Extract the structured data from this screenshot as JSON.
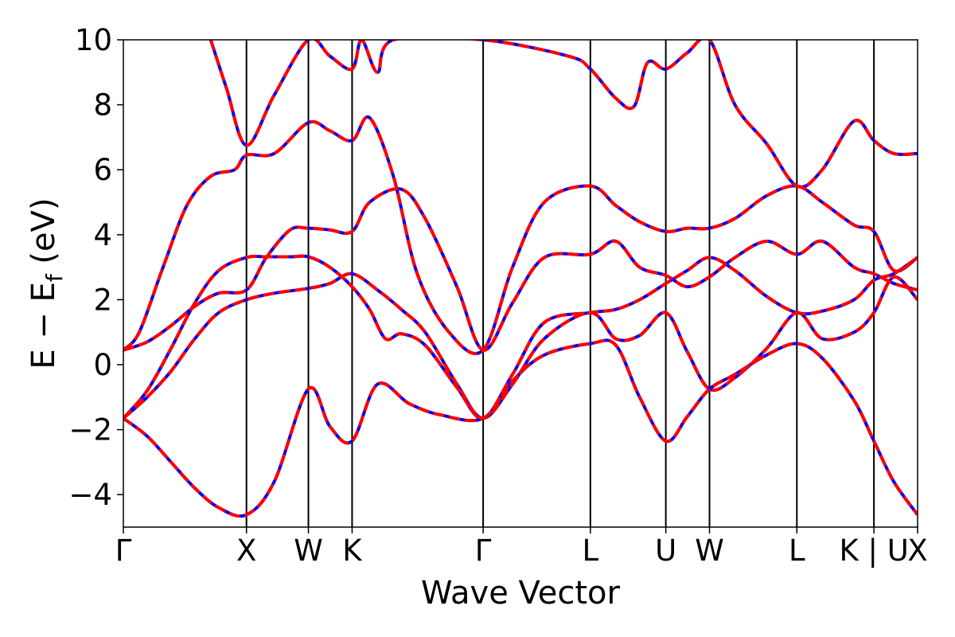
{
  "chart_data": {
    "type": "line",
    "xlabel": "Wave Vector",
    "ylabel_main": "E − E",
    "ylabel_sub": "f",
    "ylabel_unit": " (eV)",
    "ylim": [
      -5,
      10
    ],
    "xlim": [
      0,
      1
    ],
    "y_ticks": [
      -4,
      -2,
      0,
      2,
      4,
      6,
      8,
      10
    ],
    "y_tick_labels": [
      "−4",
      "−2",
      "0",
      "2",
      "4",
      "6",
      "8",
      "10"
    ],
    "kpoints": [
      {
        "label": "Γ",
        "x": 0.0
      },
      {
        "label": "X",
        "x": 0.155
      },
      {
        "label": "W",
        "x": 0.233
      },
      {
        "label": "K",
        "x": 0.288
      },
      {
        "label": "Γ",
        "x": 0.453
      },
      {
        "label": "L",
        "x": 0.588
      },
      {
        "label": "U",
        "x": 0.683
      },
      {
        "label": "W",
        "x": 0.738
      },
      {
        "label": "L",
        "x": 0.848
      },
      {
        "label": "K | U",
        "x": 0.945
      },
      {
        "label": "X",
        "x": 1.0
      }
    ],
    "styles": [
      {
        "color": "#0000ff",
        "dash": "none",
        "width": 4
      },
      {
        "color": "#ff0000",
        "dash": "dashed",
        "width": 4
      }
    ],
    "bands": [
      {
        "x": [
          0.0,
          0.03,
          0.06,
          0.09,
          0.12,
          0.155,
          0.19,
          0.233,
          0.26,
          0.288,
          0.32,
          0.36,
          0.4,
          0.453,
          0.49,
          0.53,
          0.588,
          0.62,
          0.65,
          0.683,
          0.71,
          0.738,
          0.77,
          0.81,
          0.848,
          0.88,
          0.92,
          0.945,
          0.97,
          1.0
        ],
        "y": [
          -1.65,
          -2.2,
          -3.0,
          -3.8,
          -4.4,
          -4.62,
          -3.6,
          -0.75,
          -1.9,
          -2.35,
          -0.6,
          -1.2,
          -1.55,
          -1.65,
          -0.5,
          0.3,
          0.65,
          0.6,
          -1.0,
          -2.35,
          -1.6,
          -0.75,
          -0.3,
          0.3,
          0.65,
          0.2,
          -1.1,
          -2.35,
          -3.6,
          -4.62
        ]
      },
      {
        "x": [
          0.0,
          0.03,
          0.06,
          0.09,
          0.12,
          0.155,
          0.19,
          0.233,
          0.26,
          0.288,
          0.32,
          0.35,
          0.38,
          0.42,
          0.453,
          0.49,
          0.53,
          0.588,
          0.62,
          0.65,
          0.683,
          0.71,
          0.738,
          0.77,
          0.81,
          0.848,
          0.88,
          0.92,
          0.945,
          0.97,
          1.0
        ],
        "y": [
          -1.65,
          -1.0,
          -0.2,
          0.8,
          1.6,
          2.0,
          2.2,
          2.35,
          2.5,
          2.8,
          2.3,
          1.7,
          1.0,
          -0.6,
          -1.65,
          -0.6,
          0.8,
          1.6,
          0.8,
          0.9,
          1.6,
          0.4,
          -0.75,
          -0.4,
          0.5,
          1.6,
          0.8,
          1.0,
          1.6,
          2.7,
          2.0
        ]
      },
      {
        "x": [
          0.0,
          0.03,
          0.06,
          0.09,
          0.12,
          0.155,
          0.18,
          0.21,
          0.233,
          0.26,
          0.288,
          0.31,
          0.33,
          0.35,
          0.38,
          0.42,
          0.453,
          0.49,
          0.53,
          0.588,
          0.62,
          0.65,
          0.683,
          0.71,
          0.738,
          0.77,
          0.81,
          0.848,
          0.88,
          0.92,
          0.945,
          0.97,
          1.0
        ],
        "y": [
          -1.65,
          -0.8,
          0.5,
          1.9,
          2.9,
          3.3,
          3.32,
          3.32,
          3.32,
          3.0,
          2.4,
          1.7,
          0.8,
          0.95,
          0.6,
          -0.7,
          -1.65,
          -0.3,
          1.3,
          1.6,
          1.7,
          2.0,
          2.5,
          2.9,
          3.3,
          2.9,
          2.1,
          1.6,
          1.65,
          2.0,
          2.6,
          2.8,
          3.3
        ]
      },
      {
        "x": [
          0.0,
          0.03,
          0.06,
          0.09,
          0.12,
          0.155,
          0.18,
          0.21,
          0.233,
          0.26,
          0.288,
          0.31,
          0.35,
          0.38,
          0.42,
          0.453,
          0.49,
          0.53,
          0.588,
          0.62,
          0.65,
          0.683,
          0.71,
          0.738,
          0.77,
          0.81,
          0.848,
          0.88,
          0.92,
          0.945,
          0.97,
          1.0
        ],
        "y": [
          0.45,
          0.7,
          1.2,
          1.8,
          2.2,
          2.3,
          3.3,
          4.15,
          4.2,
          4.15,
          4.1,
          5.0,
          5.4,
          4.5,
          2.4,
          0.45,
          1.9,
          3.3,
          3.4,
          3.8,
          3.0,
          2.75,
          2.4,
          2.7,
          3.3,
          3.8,
          3.4,
          3.8,
          3.0,
          2.8,
          2.5,
          2.3
        ]
      },
      {
        "x": [
          0.0,
          0.02,
          0.05,
          0.08,
          0.11,
          0.14,
          0.155,
          0.19,
          0.233,
          0.26,
          0.288,
          0.31,
          0.34,
          0.37,
          0.41,
          0.453,
          0.49,
          0.53,
          0.588,
          0.62,
          0.65,
          0.683,
          0.71,
          0.738,
          0.77,
          0.81,
          0.848,
          0.88,
          0.92,
          0.945,
          0.97,
          1.0
        ],
        "y": [
          0.45,
          1.0,
          3.0,
          4.9,
          5.8,
          6.0,
          6.45,
          6.5,
          7.45,
          7.2,
          6.9,
          7.6,
          5.8,
          2.8,
          1.0,
          0.45,
          3.0,
          5.0,
          5.5,
          4.9,
          4.4,
          4.1,
          4.2,
          4.2,
          4.5,
          5.2,
          5.5,
          5.0,
          4.3,
          4.1,
          2.9,
          3.3
        ]
      },
      {
        "x": [
          0.11,
          0.13,
          0.155,
          0.19,
          0.233,
          0.26,
          0.288,
          0.3,
          0.32,
          0.34,
          0.453,
          0.56,
          0.588,
          0.62,
          0.643,
          0.66,
          0.683,
          0.71,
          0.738,
          0.77,
          0.81,
          0.848,
          0.88,
          0.92,
          0.945,
          0.97,
          1.0
        ],
        "y": [
          10.0,
          8.5,
          6.75,
          8.3,
          10.0,
          9.5,
          9.1,
          10.0,
          9.0,
          10.0,
          10.0,
          9.5,
          9.1,
          8.2,
          7.95,
          9.3,
          9.1,
          9.6,
          10.0,
          8.0,
          6.8,
          5.5,
          6.0,
          7.5,
          6.9,
          6.5,
          6.5
        ]
      }
    ]
  }
}
